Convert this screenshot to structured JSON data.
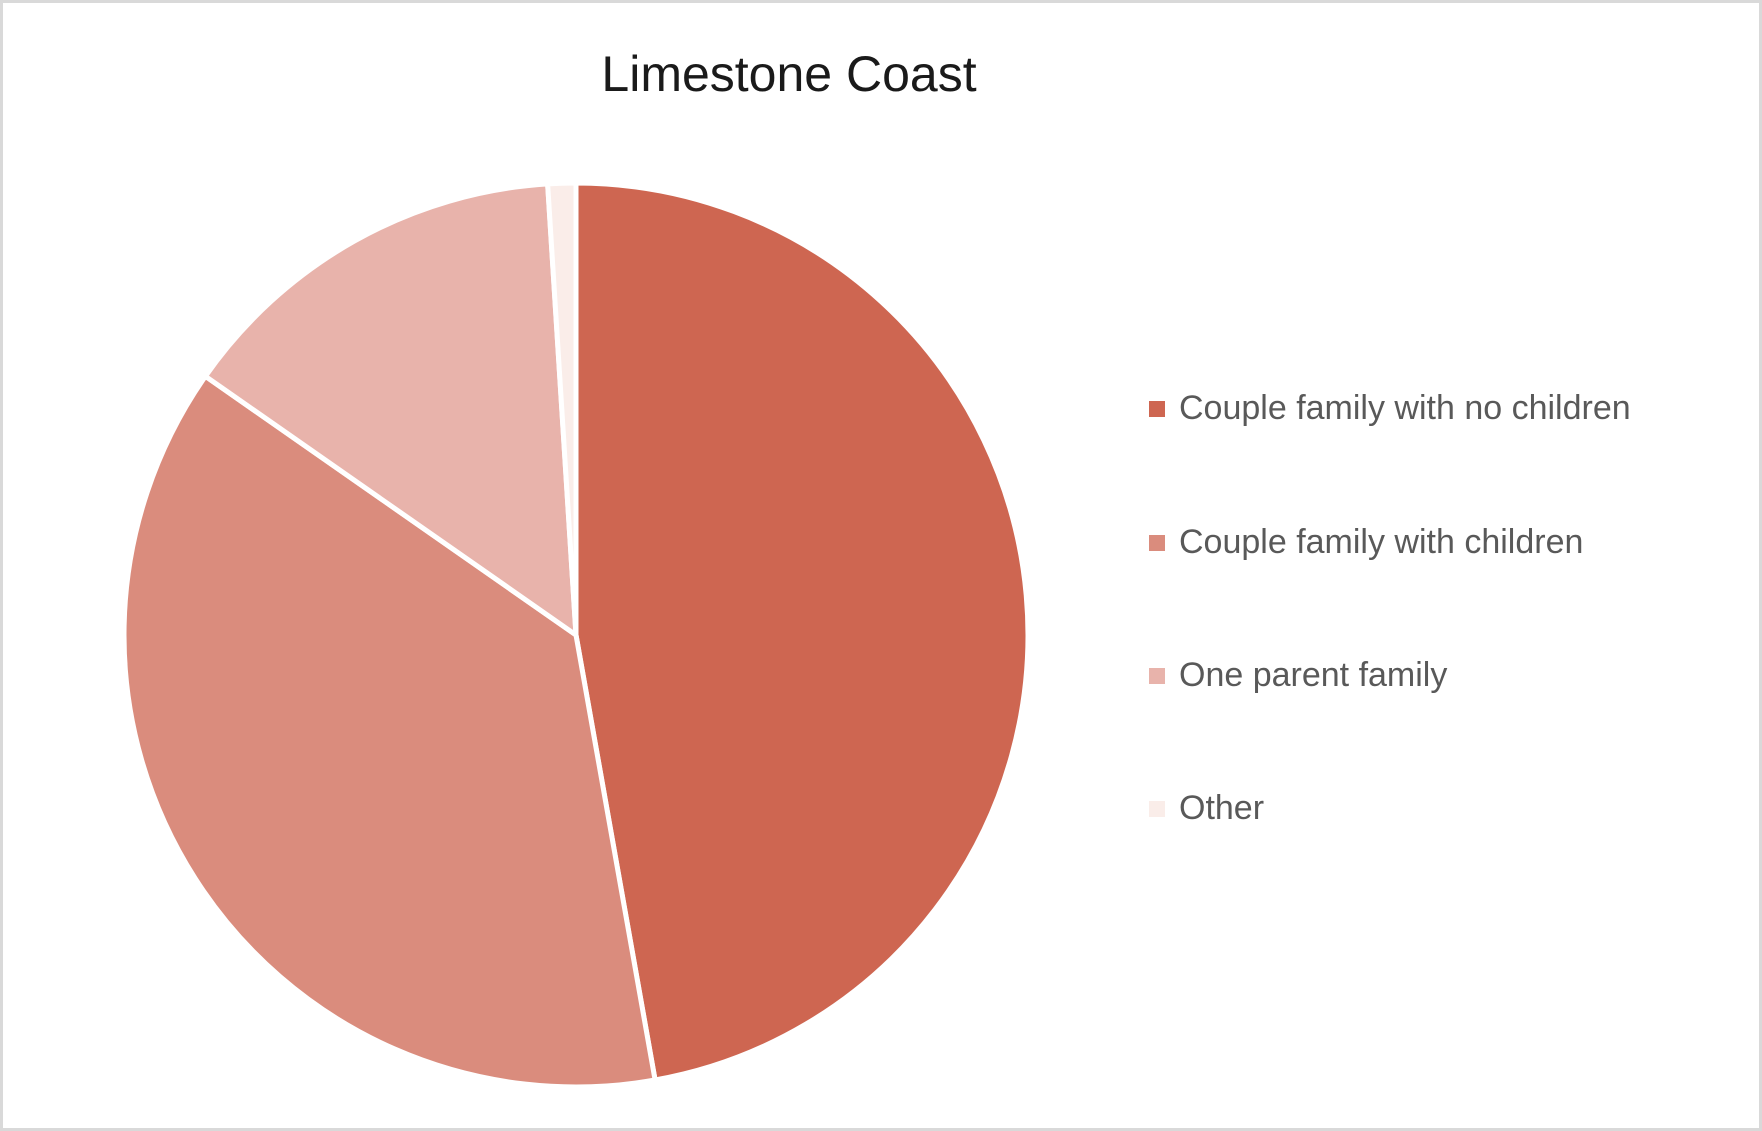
{
  "title": "Limestone Coast",
  "chart_data": {
    "type": "pie",
    "title": "Limestone Coast",
    "unit": "percent",
    "start_angle_deg": 0,
    "direction": "clockwise",
    "legend_position": "right",
    "separator_color": "#ffffff",
    "slices": [
      {
        "label": "Couple family with no children",
        "value": 47.2,
        "color": "#ce6651"
      },
      {
        "label": "Couple family with children",
        "value": 37.5,
        "color": "#da8c7d"
      },
      {
        "label": "One parent family",
        "value": 14.3,
        "color": "#e8b3ab"
      },
      {
        "label": "Other",
        "value": 1.0,
        "color": "#faede9"
      }
    ]
  },
  "colors": {
    "background": "#ffffff",
    "frame_border": "#d9d9d9",
    "title_text": "#1a1a1a",
    "legend_text": "#595959"
  }
}
